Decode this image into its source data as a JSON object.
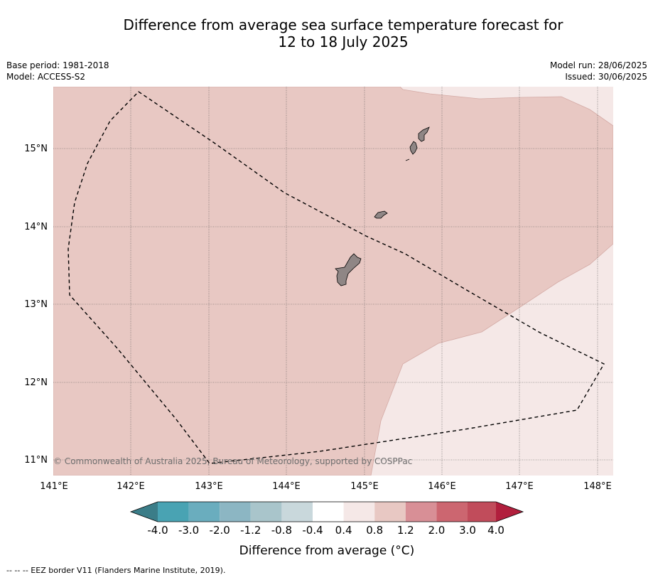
{
  "title_line1": "Difference from average sea surface temperature forecast for",
  "title_line2": "12 to 18 July 2025",
  "meta_left": {
    "base_period": "Base period: 1981-2018",
    "model": "Model: ACCESS-S2"
  },
  "meta_right": {
    "model_run": "Model run: 28/06/2025",
    "issued": "Issued: 30/06/2025"
  },
  "map": {
    "lon_labels": [
      "141°E",
      "142°E",
      "143°E",
      "144°E",
      "145°E",
      "146°E",
      "147°E",
      "148°E"
    ],
    "lat_labels": [
      "15°N",
      "14°N",
      "13°N",
      "12°N",
      "11°N"
    ],
    "copyright": "© Commonwealth of Australia 2025, Bureau of Meteorology, supported by COSPPac",
    "colors": {
      "anom_0_4_0_8": "#f5e8e7",
      "anom_0_8_1_2": "#e8c8c3",
      "land": "#8f8685"
    }
  },
  "colorbar": {
    "colors": [
      "#3b7d88",
      "#49a3b3",
      "#6aadbe",
      "#8cb6c3",
      "#a9c5cb",
      "#c9d8dc",
      "#ffffff",
      "#f5e8e7",
      "#e8c8c3",
      "#d88f96",
      "#cc6670",
      "#c14c5b",
      "#b11f3d"
    ],
    "labels": [
      "-4.0",
      "-3.0",
      "-2.0",
      "-1.2",
      "-0.8",
      "-0.4",
      "0.4",
      "0.8",
      "1.2",
      "2.0",
      "3.0",
      "4.0"
    ],
    "title": "Difference from average (°C)"
  },
  "footer": "--  --  -- EEZ border V11 (Flanders Marine Institute, 2019)."
}
